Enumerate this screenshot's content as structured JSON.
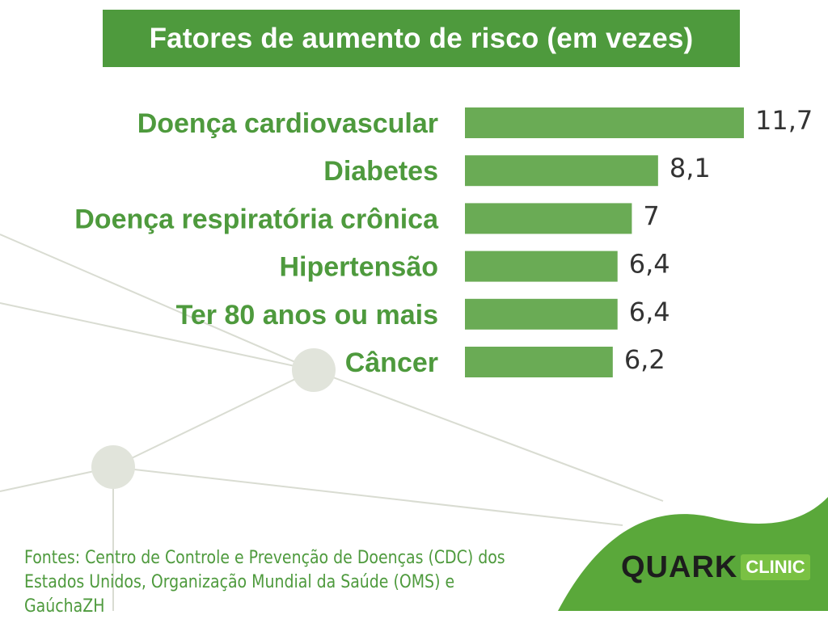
{
  "title": "Fatores de aumento de risco (em vezes)",
  "colors": {
    "bar": "#6aab55",
    "title_bg": "#4e9a3d",
    "label": "#4e9a3d",
    "value": "#333333"
  },
  "chart_data": {
    "type": "bar",
    "orientation": "horizontal",
    "title": "Fatores de aumento de risco (em vezes)",
    "categories": [
      "Doença cardiovascular",
      "Diabetes",
      "Doença respiratória crônica",
      "Hipertensão",
      "Ter 80 anos ou mais",
      "Câncer"
    ],
    "values": [
      11.7,
      8.1,
      7,
      6.4,
      6.4,
      6.2
    ],
    "value_labels": [
      "11,7",
      "8,1",
      "7",
      "6,4",
      "6,4",
      "6,2"
    ],
    "xlabel": "",
    "ylabel": "",
    "xlim": [
      0,
      11.7
    ],
    "grid": false,
    "legend": "none"
  },
  "sources": {
    "line1": "Fontes: Centro de Controle e Prevenção de Doenças (CDC) dos",
    "line2": "Estados Unidos, Organização Mundial da Saúde (OMS) e GaúchaZH"
  },
  "logo": {
    "main": "QUARK",
    "badge": "CLINIC"
  }
}
